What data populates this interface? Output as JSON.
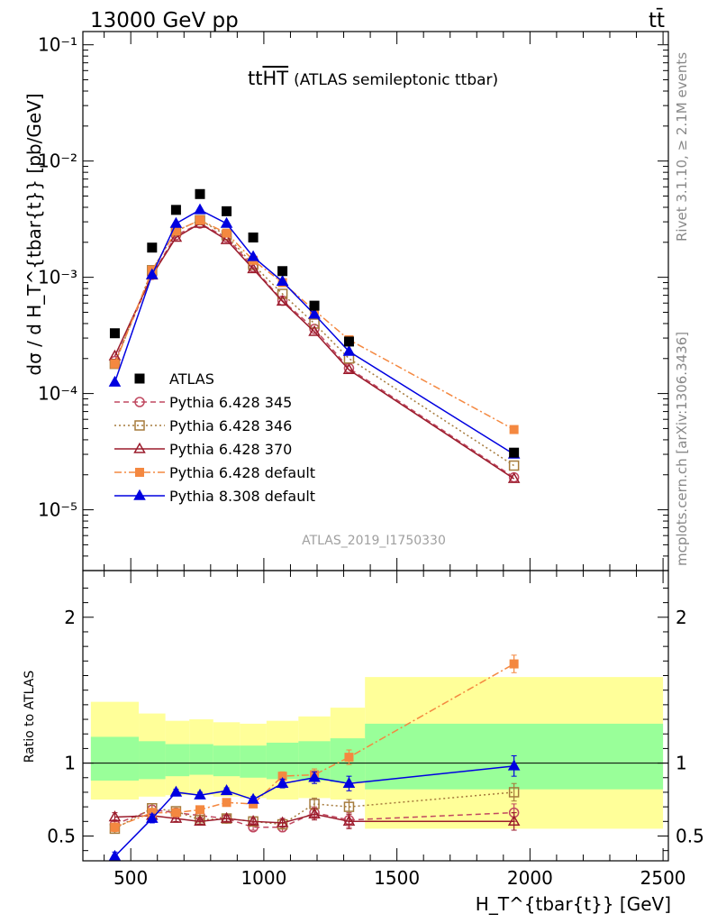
{
  "header": {
    "energy_label": "13000 GeV pp",
    "process_label": "tt̄",
    "plot_title": "tt",
    "plot_title_overlined": "HT",
    "plot_title_note": "(ATLAS semileptonic ttbar)",
    "analysis_id": "ATLAS_2019_I1750330",
    "side_label_top": "Rivet 3.1.10, ≥ 2.1M events",
    "side_label_bottom": "mcplots.cern.ch [arXiv:1306.3436]"
  },
  "chart_data": [
    {
      "type": "scatter",
      "panel": "main",
      "y_scale": "log",
      "xlim": [
        320,
        2520
      ],
      "ylim": [
        3e-06,
        0.13
      ],
      "ylabel": "dσ / d H_T^{tbar{t}} [pb/GeV]",
      "y_ticks": [
        {
          "value": 0.1,
          "label": "10⁻¹"
        },
        {
          "value": 0.01,
          "label": "10⁻²"
        },
        {
          "value": 0.001,
          "label": "10⁻³"
        },
        {
          "value": 0.0001,
          "label": "10⁻⁴"
        },
        {
          "value": 1e-05,
          "label": "10⁻⁵"
        }
      ],
      "legend_position": "bottom-left",
      "series": [
        {
          "name": "ATLAS",
          "color": "#000000",
          "marker": "square",
          "line": "none",
          "x": [
            440,
            580,
            670,
            760,
            860,
            960,
            1070,
            1190,
            1320,
            1940
          ],
          "y": [
            0.00033,
            0.0018,
            0.0038,
            0.0052,
            0.0037,
            0.0022,
            0.00113,
            0.00057,
            0.00028,
            3.1e-05
          ]
        },
        {
          "name": "Pythia 6.428 345",
          "color": "#c04860",
          "marker": "circle-open",
          "line": "dashed",
          "x": [
            440,
            580,
            670,
            760,
            860,
            960,
            1070,
            1190,
            1320,
            1940
          ],
          "y": [
            0.00019,
            0.00105,
            0.0023,
            0.0029,
            0.0022,
            0.00122,
            0.00063,
            0.00036,
            0.000165,
            1.9e-05
          ]
        },
        {
          "name": "Pythia 6.428 346",
          "color": "#a57a3c",
          "marker": "square-open",
          "line": "dotted",
          "x": [
            440,
            580,
            670,
            760,
            860,
            960,
            1070,
            1190,
            1320,
            1940
          ],
          "y": [
            0.00018,
            0.00115,
            0.0025,
            0.0031,
            0.0023,
            0.00128,
            0.00072,
            0.0004,
            0.0002,
            2.4e-05
          ]
        },
        {
          "name": "Pythia 6.428 370",
          "color": "#9b1c2c",
          "marker": "triangle-open",
          "line": "solid",
          "x": [
            440,
            580,
            670,
            760,
            860,
            960,
            1070,
            1190,
            1320,
            1940
          ],
          "y": [
            0.00021,
            0.00104,
            0.0022,
            0.0029,
            0.0021,
            0.00118,
            0.00062,
            0.00034,
            0.00016,
            1.85e-05
          ]
        },
        {
          "name": "Pythia 6.428 default",
          "color": "#f48840",
          "marker": "square",
          "line": "dashdot",
          "x": [
            440,
            580,
            670,
            760,
            860,
            960,
            1070,
            1190,
            1320,
            1940
          ],
          "y": [
            0.00018,
            0.00115,
            0.0025,
            0.0031,
            0.0024,
            0.0014,
            0.0009,
            0.00052,
            0.00029,
            4.9e-05
          ]
        },
        {
          "name": "Pythia 8.308 default",
          "color": "#0000e0",
          "marker": "triangle",
          "line": "solid",
          "x": [
            440,
            580,
            670,
            760,
            860,
            960,
            1070,
            1190,
            1320,
            1940
          ],
          "y": [
            0.000125,
            0.00105,
            0.0029,
            0.0038,
            0.0029,
            0.0015,
            0.00092,
            0.00048,
            0.00023,
            3e-05
          ]
        }
      ]
    },
    {
      "type": "scatter",
      "panel": "ratio",
      "xlim": [
        320,
        2520
      ],
      "ylim": [
        0.33,
        2.32
      ],
      "ylabel": "Ratio to ATLAS",
      "xlabel": "H_T^{tbar{t}} [GeV]",
      "x_ticks": [
        500,
        1000,
        1500,
        2000,
        2500
      ],
      "y_ticks": [
        {
          "value": 2,
          "label": "2"
        },
        {
          "value": 1,
          "label": "1"
        },
        {
          "value": 0.5,
          "label": "0.5"
        }
      ],
      "bands": {
        "bin_edges": [
          350,
          530,
          630,
          720,
          810,
          910,
          1010,
          1130,
          1250,
          1380,
          2500
        ],
        "outer_low": [
          0.75,
          0.77,
          0.78,
          0.78,
          0.77,
          0.76,
          0.75,
          0.76,
          0.75,
          0.55
        ],
        "outer_high": [
          1.42,
          1.34,
          1.29,
          1.3,
          1.28,
          1.27,
          1.29,
          1.32,
          1.38,
          1.59
        ],
        "inner_low": [
          0.88,
          0.89,
          0.91,
          0.92,
          0.91,
          0.9,
          0.89,
          0.88,
          0.87,
          0.82
        ],
        "inner_high": [
          1.18,
          1.15,
          1.13,
          1.13,
          1.12,
          1.12,
          1.14,
          1.15,
          1.17,
          1.27
        ],
        "outer_color": "#ffff99",
        "inner_color": "#99ff99"
      },
      "series": [
        {
          "name": "Pythia 6.428 345",
          "color": "#c04860",
          "marker": "circle-open",
          "line": "dashed",
          "x": [
            440,
            580,
            670,
            760,
            860,
            960,
            1070,
            1190,
            1320,
            1940
          ],
          "y": [
            0.58,
            0.68,
            0.66,
            0.64,
            0.62,
            0.56,
            0.56,
            0.66,
            0.61,
            0.66
          ],
          "err": [
            0.03,
            0.03,
            0.02,
            0.02,
            0.02,
            0.02,
            0.03,
            0.04,
            0.05,
            0.06
          ]
        },
        {
          "name": "Pythia 6.428 346",
          "color": "#a57a3c",
          "marker": "square-open",
          "line": "dotted",
          "x": [
            440,
            580,
            670,
            760,
            860,
            960,
            1070,
            1190,
            1320,
            1940
          ],
          "y": [
            0.55,
            0.69,
            0.67,
            0.61,
            0.62,
            0.6,
            0.58,
            0.72,
            0.7,
            0.8
          ],
          "err": [
            0.03,
            0.03,
            0.02,
            0.02,
            0.02,
            0.02,
            0.03,
            0.04,
            0.05,
            0.06
          ]
        },
        {
          "name": "Pythia 6.428 370",
          "color": "#9b1c2c",
          "marker": "triangle-open",
          "line": "solid",
          "x": [
            440,
            580,
            670,
            760,
            860,
            960,
            1070,
            1190,
            1320,
            1940
          ],
          "y": [
            0.63,
            0.64,
            0.62,
            0.6,
            0.62,
            0.6,
            0.59,
            0.65,
            0.6,
            0.6
          ],
          "err": [
            0.03,
            0.03,
            0.02,
            0.02,
            0.02,
            0.02,
            0.03,
            0.04,
            0.05,
            0.06
          ]
        },
        {
          "name": "Pythia 6.428 default",
          "color": "#f48840",
          "marker": "square",
          "line": "dashdot",
          "x": [
            440,
            580,
            670,
            760,
            860,
            960,
            1070,
            1190,
            1320,
            1940
          ],
          "y": [
            0.56,
            0.66,
            0.66,
            0.68,
            0.73,
            0.72,
            0.91,
            0.92,
            1.04,
            1.68
          ],
          "err": [
            0.03,
            0.03,
            0.02,
            0.02,
            0.02,
            0.02,
            0.03,
            0.04,
            0.05,
            0.06
          ]
        },
        {
          "name": "Pythia 8.308 default",
          "color": "#0000e0",
          "marker": "triangle",
          "line": "solid",
          "x": [
            440,
            580,
            670,
            760,
            860,
            960,
            1070,
            1190,
            1320,
            1940
          ],
          "y": [
            0.36,
            0.62,
            0.8,
            0.78,
            0.81,
            0.75,
            0.86,
            0.9,
            0.86,
            0.98
          ],
          "err": [
            0.03,
            0.03,
            0.02,
            0.02,
            0.02,
            0.02,
            0.03,
            0.04,
            0.05,
            0.07
          ]
        }
      ]
    }
  ]
}
